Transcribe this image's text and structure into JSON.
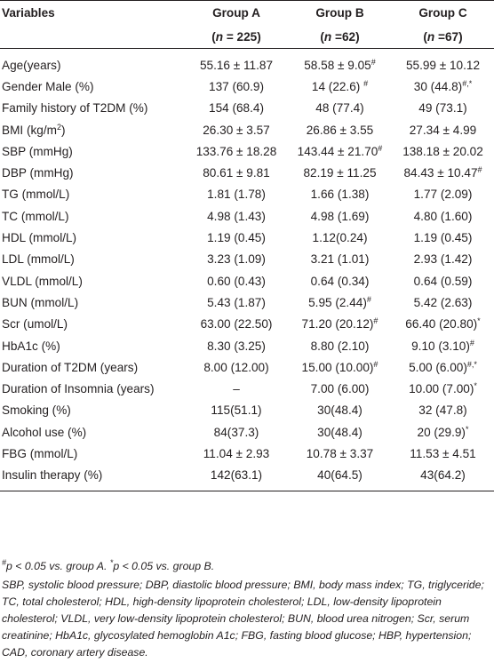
{
  "table": {
    "header": {
      "variables": "Variables",
      "groups": [
        {
          "name": "Group A",
          "n_pre": "(",
          "n_sym": "n",
          "n_val": " = 225)"
        },
        {
          "name": "Group B",
          "n_pre": "(",
          "n_sym": "n",
          "n_val": " =62)"
        },
        {
          "name": "Group C",
          "n_pre": "(",
          "n_sym": "n",
          "n_val": " =67)"
        }
      ]
    },
    "rows": [
      {
        "label": "Age(years)",
        "a": "55.16 ± 11.87",
        "b": "58.58 ± 9.05",
        "b_sup": "#",
        "c": "55.99 ± 10.12"
      },
      {
        "label": "Gender Male (%)",
        "a": "137 (60.9)",
        "b": "14 (22.6) ",
        "b_sup": "#",
        "c": "30 (44.8)",
        "c_sup": "#,*"
      },
      {
        "label": "Family history of T2DM (%)",
        "a": "154 (68.4)",
        "b": "48 (77.4)",
        "c": "49 (73.1)"
      },
      {
        "label": "BMI (kg/m",
        "label_sup": "2",
        "label_end": ")",
        "a": "26.30 ± 3.57",
        "b": "26.86 ± 3.55",
        "c": "27.34 ± 4.99"
      },
      {
        "label": "SBP (mmHg)",
        "a": "133.76 ± 18.28",
        "b": "143.44 ± 21.70",
        "b_sup": "#",
        "c": "138.18 ± 20.02"
      },
      {
        "label": "DBP (mmHg)",
        "a": "80.61 ± 9.81",
        "b": "82.19 ± 11.25",
        "c": "84.43 ± 10.47",
        "c_sup": "#"
      },
      {
        "label": "TG (mmol/L)",
        "a": "1.81 (1.78)",
        "b": "1.66 (1.38)",
        "c": "1.77 (2.09)"
      },
      {
        "label": "TC (mmol/L)",
        "a": "4.98 (1.43)",
        "b": "4.98 (1.69)",
        "c": "4.80 (1.60)"
      },
      {
        "label": "HDL (mmol/L)",
        "a": "1.19 (0.45)",
        "b": "1.12(0.24)",
        "c": "1.19 (0.45)"
      },
      {
        "label": "LDL (mmol/L)",
        "a": "3.23 (1.09)",
        "b": "3.21 (1.01)",
        "c": "2.93 (1.42)"
      },
      {
        "label": "VLDL (mmol/L)",
        "a": "0.60 (0.43)",
        "b": "0.64 (0.34)",
        "c": "0.64 (0.59)"
      },
      {
        "label": "BUN (mmol/L)",
        "a": "5.43 (1.87)",
        "b": "5.95 (2.44)",
        "b_sup": "#",
        "c": "5.42 (2.63)"
      },
      {
        "label": "Scr (umol/L)",
        "a": "63.00 (22.50)",
        "b": "71.20 (20.12)",
        "b_sup": "#",
        "c": "66.40 (20.80)",
        "c_sup": "*"
      },
      {
        "label": "HbA1c (%)",
        "a": "8.30 (3.25)",
        "b": "8.80 (2.10)",
        "c": "9.10 (3.10)",
        "c_sup": "#"
      },
      {
        "label": "Duration of T2DM (years)",
        "a": "8.00 (12.00)",
        "b": "15.00 (10.00)",
        "b_sup": "#",
        "c": "5.00 (6.00)",
        "c_sup": "#,*"
      },
      {
        "label": "Duration of Insomnia (years)",
        "a": "–",
        "b": "7.00 (6.00)",
        "c": "10.00 (7.00)",
        "c_sup": "*"
      },
      {
        "label": "Smoking (%)",
        "a": "115(51.1)",
        "b": "30(48.4)",
        "c": "32 (47.8)"
      },
      {
        "label": "Alcohol use (%)",
        "a": "84(37.3)",
        "b": "30(48.4)",
        "c": "20 (29.9)",
        "c_sup": "*"
      },
      {
        "label": "FBG (mmol/L)",
        "a": "11.04 ± 2.93",
        "b": "10.78 ± 3.37",
        "c": "11.53 ± 4.51"
      },
      {
        "label": "Insulin therapy (%)",
        "a": "142(63.1)",
        "b": "40(64.5)",
        "c": "43(64.2)"
      }
    ]
  },
  "footnotes": {
    "sig_sup1": "#",
    "sig_text1": "p < 0.05 vs. group A. ",
    "sig_sup2": "*",
    "sig_text2": "p < 0.05 vs. group B.",
    "abbrev": "SBP, systolic blood pressure; DBP, diastolic blood pressure; BMI, body mass index; TG, triglyceride; TC, total cholesterol; HDL, high-density lipoprotein cholesterol; LDL, low-density lipoprotein cholesterol; VLDL, very low-density lipoprotein cholesterol; BUN, blood urea nitrogen; Scr, serum creatinine; HbA1c, glycosylated hemoglobin A1c; FBG, fasting blood glucose; HBP, hypertension; CAD, coronary artery disease."
  }
}
